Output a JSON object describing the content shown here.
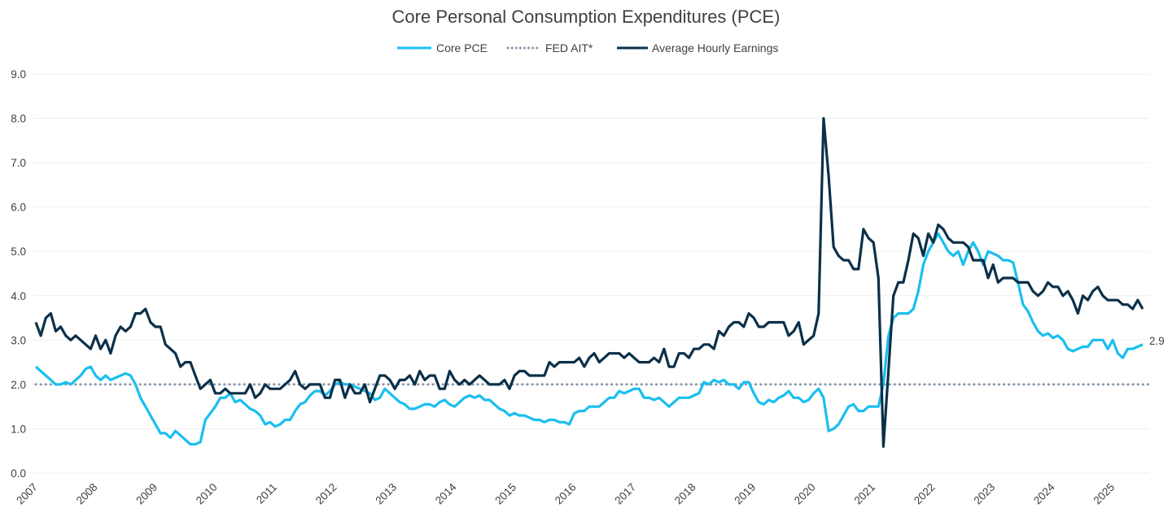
{
  "chart_data": {
    "type": "line",
    "title": "Core Personal Consumption Expenditures (PCE)",
    "xlabel": "",
    "ylabel": "",
    "ylim": [
      0,
      9
    ],
    "yticks": [
      "0.0",
      "1.0",
      "2.0",
      "3.0",
      "4.0",
      "5.0",
      "6.0",
      "7.0",
      "8.0",
      "9.0"
    ],
    "xticks": [
      "2007",
      "2008",
      "2009",
      "2010",
      "2011",
      "2012",
      "2013",
      "2014",
      "2015",
      "2016",
      "2017",
      "2018",
      "2019",
      "2020",
      "2021",
      "2022",
      "2023",
      "2024",
      "2025"
    ],
    "x_start": "2007-01",
    "x_frequency": "monthly",
    "grid": "horizontal",
    "legend_position": "top",
    "end_label": "2.9",
    "series": [
      {
        "name": "Core PCE",
        "color": "#1ABFF0",
        "style": "solid",
        "values": [
          2.4,
          2.3,
          2.2,
          2.1,
          2.0,
          2.0,
          2.05,
          2.0,
          2.1,
          2.2,
          2.35,
          2.4,
          2.2,
          2.1,
          2.2,
          2.1,
          2.15,
          2.2,
          2.25,
          2.2,
          2.0,
          1.7,
          1.5,
          1.3,
          1.1,
          0.9,
          0.9,
          0.8,
          0.95,
          0.85,
          0.75,
          0.65,
          0.65,
          0.7,
          1.2,
          1.35,
          1.5,
          1.7,
          1.7,
          1.8,
          1.6,
          1.65,
          1.55,
          1.45,
          1.4,
          1.3,
          1.1,
          1.15,
          1.05,
          1.1,
          1.2,
          1.2,
          1.4,
          1.55,
          1.6,
          1.75,
          1.85,
          1.85,
          1.75,
          1.85,
          2.0,
          2.05,
          2.0,
          2.0,
          1.95,
          1.9,
          1.85,
          1.8,
          1.65,
          1.7,
          1.9,
          1.8,
          1.7,
          1.6,
          1.55,
          1.45,
          1.45,
          1.5,
          1.55,
          1.55,
          1.5,
          1.6,
          1.65,
          1.55,
          1.5,
          1.6,
          1.7,
          1.75,
          1.7,
          1.75,
          1.65,
          1.65,
          1.55,
          1.45,
          1.4,
          1.3,
          1.35,
          1.3,
          1.3,
          1.25,
          1.2,
          1.2,
          1.15,
          1.2,
          1.2,
          1.15,
          1.15,
          1.1,
          1.35,
          1.4,
          1.4,
          1.5,
          1.5,
          1.5,
          1.6,
          1.7,
          1.7,
          1.85,
          1.8,
          1.85,
          1.9,
          1.9,
          1.7,
          1.7,
          1.65,
          1.7,
          1.6,
          1.5,
          1.6,
          1.7,
          1.7,
          1.7,
          1.75,
          1.8,
          2.05,
          2.0,
          2.1,
          2.05,
          2.1,
          2.0,
          2.0,
          1.9,
          2.05,
          2.05,
          1.8,
          1.6,
          1.55,
          1.65,
          1.6,
          1.7,
          1.75,
          1.85,
          1.7,
          1.7,
          1.6,
          1.65,
          1.8,
          1.9,
          1.7,
          0.95,
          1.0,
          1.1,
          1.3,
          1.5,
          1.55,
          1.4,
          1.4,
          1.5,
          1.5,
          1.5,
          2.0,
          3.1,
          3.5,
          3.6,
          3.6,
          3.6,
          3.7,
          4.1,
          4.7,
          5.0,
          5.2,
          5.4,
          5.2,
          5.0,
          4.9,
          5.0,
          4.7,
          5.0,
          5.2,
          5.0,
          4.7,
          5.0,
          4.95,
          4.9,
          4.8,
          4.8,
          4.75,
          4.3,
          3.8,
          3.65,
          3.4,
          3.2,
          3.1,
          3.15,
          3.05,
          3.1,
          3.0,
          2.8,
          2.75,
          2.8,
          2.85,
          2.85,
          3.0,
          3.0,
          3.0,
          2.8,
          3.0,
          2.7,
          2.6,
          2.8,
          2.8,
          2.85,
          2.9
        ]
      },
      {
        "name": "FED AIT*",
        "color": "#8496A9",
        "style": "dotted",
        "constant": 2.0
      },
      {
        "name": "Average Hourly Earnings",
        "color": "#0B3049",
        "style": "solid",
        "values": [
          3.4,
          3.1,
          3.5,
          3.6,
          3.2,
          3.3,
          3.1,
          3.0,
          3.1,
          3.0,
          2.9,
          2.8,
          3.1,
          2.8,
          3.0,
          2.7,
          3.1,
          3.3,
          3.2,
          3.3,
          3.6,
          3.6,
          3.7,
          3.4,
          3.3,
          3.3,
          2.9,
          2.8,
          2.7,
          2.4,
          2.5,
          2.5,
          2.2,
          1.9,
          2.0,
          2.1,
          1.8,
          1.8,
          1.9,
          1.8,
          1.8,
          1.8,
          1.8,
          2.0,
          1.7,
          1.8,
          2.0,
          1.9,
          1.9,
          1.9,
          2.0,
          2.1,
          2.3,
          2.0,
          1.9,
          2.0,
          2.0,
          2.0,
          1.7,
          1.7,
          2.1,
          2.1,
          1.7,
          2.0,
          1.8,
          1.8,
          2.0,
          1.6,
          1.9,
          2.2,
          2.2,
          2.1,
          1.9,
          2.1,
          2.1,
          2.2,
          2.0,
          2.3,
          2.1,
          2.2,
          2.2,
          1.9,
          1.9,
          2.3,
          2.1,
          2.0,
          2.1,
          2.0,
          2.1,
          2.2,
          2.1,
          2.0,
          2.0,
          2.0,
          2.1,
          1.9,
          2.2,
          2.3,
          2.3,
          2.2,
          2.2,
          2.2,
          2.2,
          2.5,
          2.4,
          2.5,
          2.5,
          2.5,
          2.5,
          2.6,
          2.4,
          2.6,
          2.7,
          2.5,
          2.6,
          2.7,
          2.7,
          2.7,
          2.6,
          2.7,
          2.6,
          2.5,
          2.5,
          2.5,
          2.6,
          2.5,
          2.8,
          2.4,
          2.4,
          2.7,
          2.7,
          2.6,
          2.8,
          2.8,
          2.9,
          2.9,
          2.8,
          3.2,
          3.1,
          3.3,
          3.4,
          3.4,
          3.3,
          3.6,
          3.5,
          3.3,
          3.3,
          3.4,
          3.4,
          3.4,
          3.4,
          3.1,
          3.2,
          3.4,
          2.9,
          3.0,
          3.1,
          3.6,
          8.0,
          6.7,
          5.1,
          4.9,
          4.8,
          4.8,
          4.6,
          4.6,
          5.5,
          5.3,
          5.2,
          4.4,
          0.6,
          2.3,
          4.0,
          4.3,
          4.3,
          4.8,
          5.4,
          5.3,
          4.9,
          5.4,
          5.2,
          5.6,
          5.5,
          5.3,
          5.2,
          5.2,
          5.2,
          5.1,
          4.8,
          4.8,
          4.8,
          4.4,
          4.7,
          4.3,
          4.4,
          4.4,
          4.4,
          4.3,
          4.3,
          4.3,
          4.1,
          4.0,
          4.1,
          4.3,
          4.2,
          4.2,
          4.0,
          4.1,
          3.9,
          3.6,
          4.0,
          3.9,
          4.1,
          4.2,
          4.0,
          3.9,
          3.9,
          3.9,
          3.8,
          3.8,
          3.7,
          3.9,
          3.7
        ]
      }
    ]
  }
}
